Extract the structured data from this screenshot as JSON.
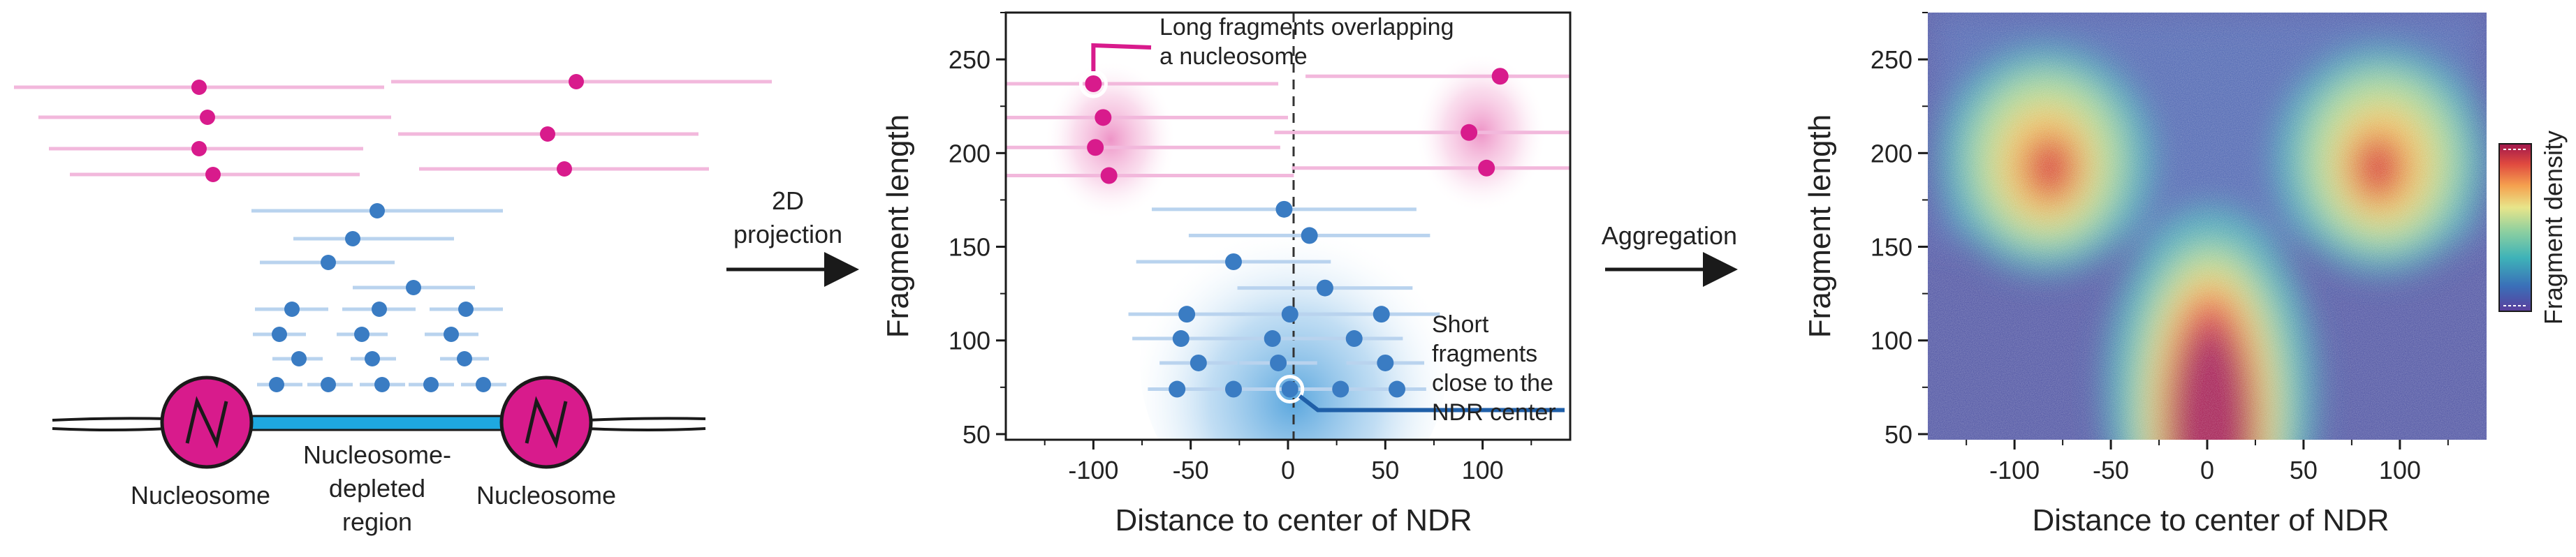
{
  "colors": {
    "nucleosome": "#d81b8c",
    "nucleosome_light": "#f2b8dc",
    "fragment_blue": "#3a7cc3",
    "fragment_blue_light": "#b9d3ee",
    "dna_cyan": "#1ea8e0",
    "arrow": "#1a1a1a"
  },
  "schematic": {
    "left_label": "Nucleosome",
    "center_label_line1": "Nucleosome-",
    "center_label_line2": "depleted",
    "center_label_line3": "region",
    "right_label": "Nucleosome"
  },
  "arrow1": {
    "line1": "2D",
    "line2": "projection"
  },
  "arrow2": {
    "label": "Aggregation"
  },
  "scatter": {
    "title_x": "Distance to center of NDR",
    "title_y": "Fragment length",
    "x_ticks": [
      "-100",
      "-50",
      "0",
      "50",
      "100"
    ],
    "x_tick_values": [
      -100,
      -50,
      0,
      50,
      100
    ],
    "y_ticks": [
      "50",
      "100",
      "150",
      "200",
      "250"
    ],
    "y_tick_values": [
      50,
      100,
      150,
      200,
      250
    ],
    "xlim": [
      -145,
      145
    ],
    "ylim": [
      47,
      275
    ],
    "annotation_long_line1": "Long fragments overlapping",
    "annotation_long_line2": "a nucleosome",
    "annotation_short_line1": "Short",
    "annotation_short_line2": "fragments",
    "annotation_short_line3": "close to the",
    "annotation_short_line4": "NDR center"
  },
  "heatmap": {
    "title_x": "Distance to center of NDR",
    "title_y": "Fragment length",
    "x_ticks": [
      "-100",
      "-50",
      "0",
      "50",
      "100"
    ],
    "x_tick_values": [
      -100,
      -50,
      0,
      50,
      100
    ],
    "y_ticks": [
      "50",
      "100",
      "150",
      "200",
      "250"
    ],
    "y_tick_values": [
      50,
      100,
      150,
      200,
      250
    ],
    "xlim": [
      -145,
      145
    ],
    "ylim": [
      47,
      275
    ],
    "colorbar_label": "Fragment density"
  },
  "chart_data": {
    "type": "scatter",
    "title": "",
    "xlabel": "Distance to center of NDR",
    "ylabel": "Fragment length",
    "xlim": [
      -145,
      145
    ],
    "ylim": [
      47,
      275
    ],
    "series": [
      {
        "name": "Long fragments overlapping a nucleosome",
        "color": "#d81b8c",
        "points": [
          {
            "x": -100,
            "y": 237,
            "half_width": 95
          },
          {
            "x": -95,
            "y": 219,
            "half_width": 95
          },
          {
            "x": -99,
            "y": 203,
            "half_width": 95
          },
          {
            "x": -92,
            "y": 188,
            "half_width": 95
          },
          {
            "x": 109,
            "y": 241,
            "half_width": 100
          },
          {
            "x": 93,
            "y": 211,
            "half_width": 100
          },
          {
            "x": 102,
            "y": 192,
            "half_width": 100
          }
        ]
      },
      {
        "name": "Short fragments close to the NDR center",
        "color": "#3a7cc3",
        "points": [
          {
            "x": -2,
            "y": 170,
            "half_width": 68
          },
          {
            "x": 11,
            "y": 156,
            "half_width": 62
          },
          {
            "x": -28,
            "y": 142,
            "half_width": 50
          },
          {
            "x": 19,
            "y": 128,
            "half_width": 45
          },
          {
            "x": -52,
            "y": 114,
            "half_width": 30
          },
          {
            "x": 1,
            "y": 114,
            "half_width": 30
          },
          {
            "x": 48,
            "y": 114,
            "half_width": 30
          },
          {
            "x": -55,
            "y": 101,
            "half_width": 25
          },
          {
            "x": -8,
            "y": 101,
            "half_width": 25
          },
          {
            "x": 34,
            "y": 101,
            "half_width": 25
          },
          {
            "x": -46,
            "y": 88,
            "half_width": 20
          },
          {
            "x": -5,
            "y": 88,
            "half_width": 20
          },
          {
            "x": 50,
            "y": 88,
            "half_width": 20
          },
          {
            "x": -57,
            "y": 74,
            "half_width": 15
          },
          {
            "x": -28,
            "y": 74,
            "half_width": 15
          },
          {
            "x": 1,
            "y": 74,
            "half_width": 15
          },
          {
            "x": 27,
            "y": 74,
            "half_width": 15
          },
          {
            "x": 56,
            "y": 74,
            "half_width": 15
          }
        ]
      }
    ]
  }
}
